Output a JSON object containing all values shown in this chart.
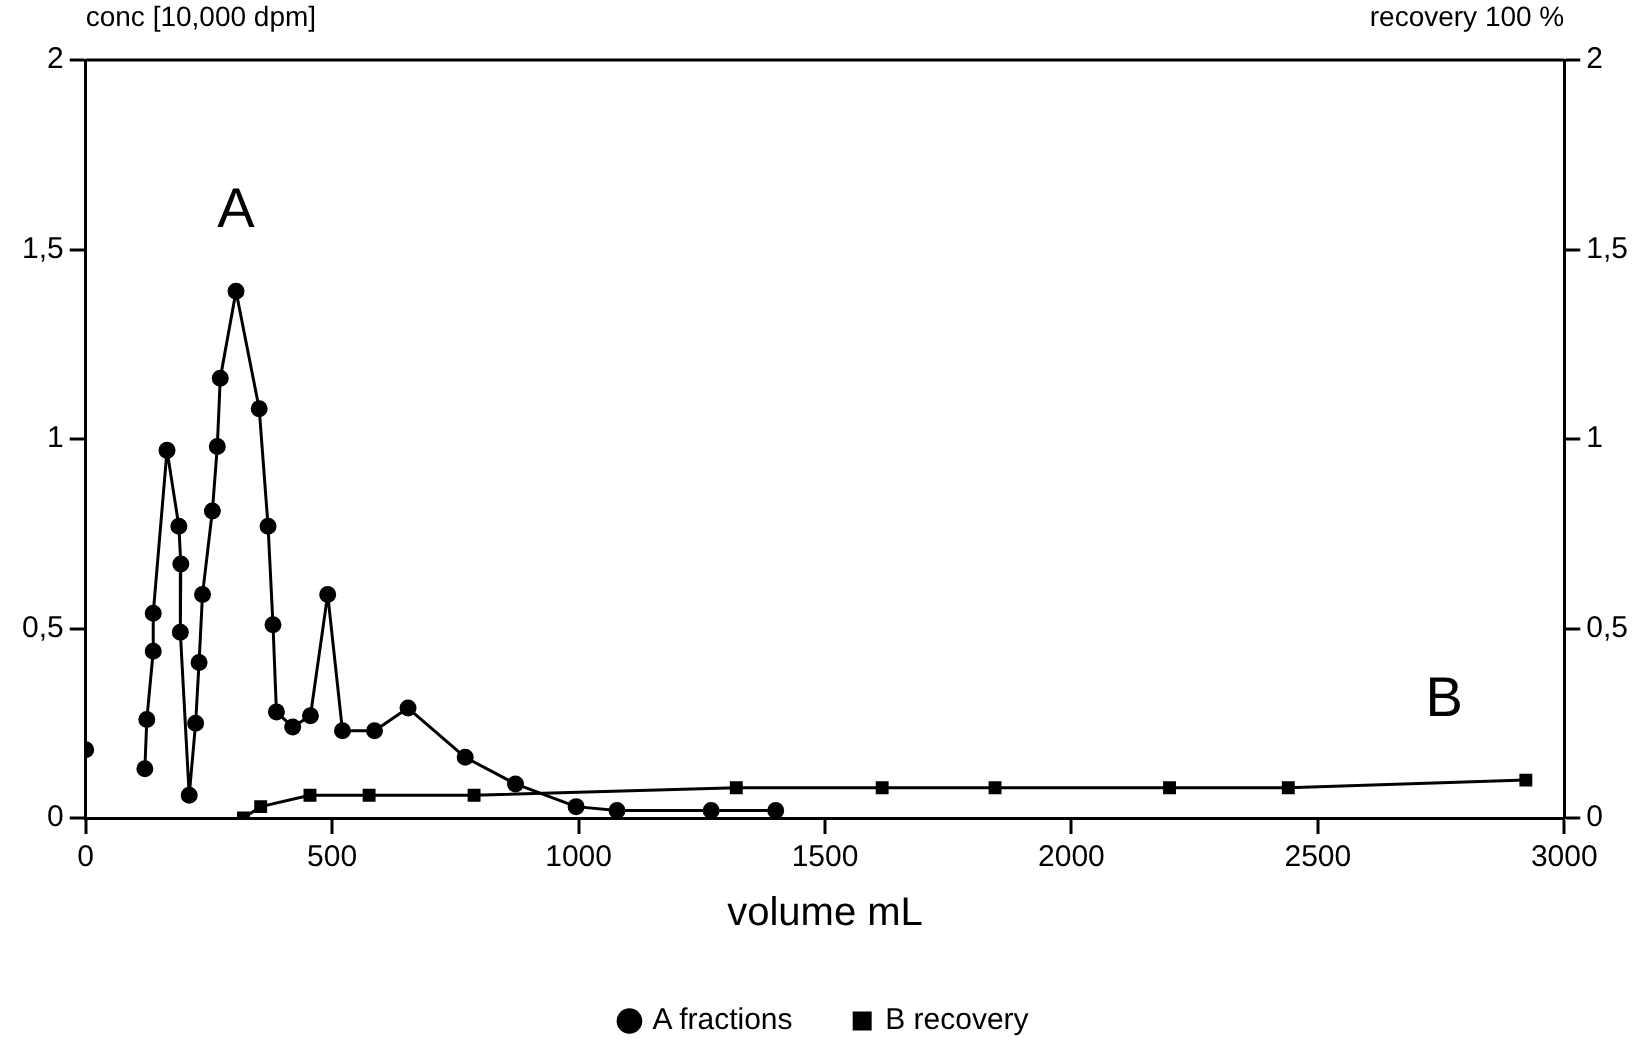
{
  "chart_data": {
    "type": "line",
    "xlabel": "volume mL",
    "ylabel": "conc [10,000 dpm]",
    "y2label": "recovery 100 %",
    "xlim": [
      0,
      3000
    ],
    "xticks": [
      0,
      500,
      1000,
      1500,
      2000,
      2500,
      3000
    ],
    "ylim": [
      0,
      2
    ],
    "yticks": [
      0,
      {
        "value": 0.5,
        "label": "0,5"
      },
      1,
      {
        "value": 1.5,
        "label": "1,5"
      },
      2
    ],
    "y2lim": [
      0,
      2
    ],
    "y2ticks": [
      0,
      {
        "value": 0.5,
        "label": "0,5"
      },
      1,
      {
        "value": 1.5,
        "label": "1,5"
      },
      2
    ],
    "grid": false,
    "legend": "bottom",
    "line_style": "solid",
    "annotations": [
      "A",
      "B"
    ],
    "series": [
      {
        "name": "A fractions",
        "color": "#000000",
        "marker": "circle",
        "x": [
          0,
          60,
          120,
          124,
          137,
          137,
          165,
          189,
          193,
          192,
          210,
          223,
          230,
          237,
          257,
          267,
          273,
          305,
          352,
          370,
          380,
          387,
          420,
          456,
          491,
          521,
          586,
          654,
          770,
          872,
          995,
          1078,
          1269,
          1400
        ],
        "values": [
          0.18,
          null,
          0.13,
          0.26,
          0.44,
          0.54,
          0.97,
          0.77,
          0.67,
          0.49,
          0.06,
          0.25,
          0.41,
          0.59,
          0.81,
          0.98,
          1.16,
          1.39,
          1.08,
          0.77,
          0.51,
          0.28,
          0.24,
          0.27,
          0.59,
          0.23,
          0.23,
          0.29,
          0.16,
          0.09,
          0.03,
          0.02,
          0.02,
          0.02
        ]
      },
      {
        "name": "B recovery",
        "color": "#000000",
        "marker": "square",
        "axis": "y2",
        "x": [
          320,
          355,
          455,
          575,
          788,
          1320,
          1616,
          1845,
          2199,
          2440,
          2922
        ],
        "values": [
          0,
          0.03,
          0.06,
          0.06,
          0.06,
          0.08,
          0.08,
          0.08,
          0.08,
          0.08,
          0.1
        ]
      }
    ]
  }
}
